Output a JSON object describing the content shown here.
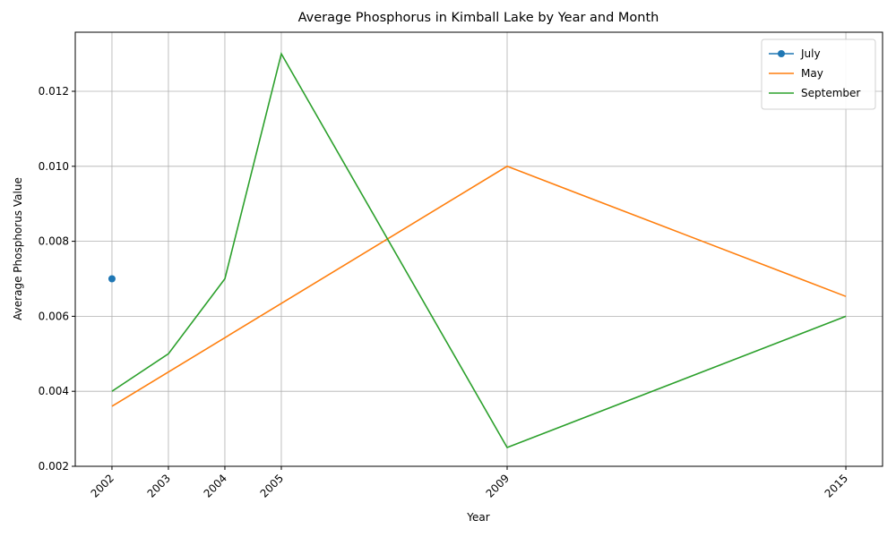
{
  "chart_data": {
    "type": "line",
    "title": "Average Phosphorus in Kimball Lake by Year and Month",
    "x_label": "Year",
    "y_label": "Average Phosphorus Value",
    "series": [
      {
        "name": "July",
        "color": "#1f77b4",
        "marker": "o",
        "x": [
          2002
        ],
        "values": [
          0.007
        ]
      },
      {
        "name": "May",
        "color": "#ff7f0e",
        "marker": null,
        "x": [
          2002,
          2009,
          2015
        ],
        "values": [
          0.0036,
          0.01,
          0.00653
        ]
      },
      {
        "name": "September",
        "color": "#2ca02c",
        "marker": null,
        "x": [
          2002,
          2003,
          2004,
          2005,
          2009,
          2015
        ],
        "values": [
          0.004,
          0.005,
          0.007,
          0.013,
          0.0025,
          0.006
        ]
      }
    ],
    "xlim": [
      2001.35,
      2015.65
    ],
    "xticks": [
      2002,
      2003,
      2004,
      2005,
      2009,
      2015
    ],
    "ylim": [
      0.002,
      0.013575
    ],
    "yticks": [
      0.002,
      0.004,
      0.006,
      0.008,
      {
        "value": 0.01,
        "label": "0.010"
      },
      0.012
    ],
    "grid": true,
    "legend": "upper-right"
  }
}
